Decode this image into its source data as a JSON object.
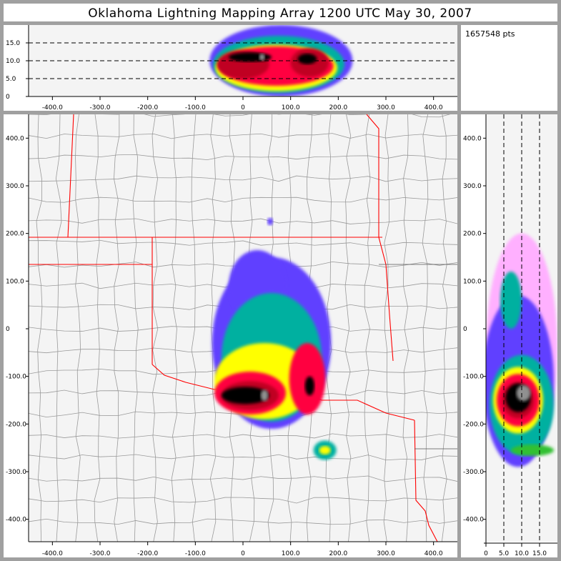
{
  "title": "Oklahoma Lightning Mapping Array   1200 UTC  May 30, 2007",
  "point_count": "1657548 pts",
  "colors": {
    "background": "#a0a0a0",
    "plot_bg": "#f4f4f4",
    "state_border": "#ff0000",
    "county_border": "#9a9a9a",
    "levels": [
      "#ffb0ff",
      "#6040ff",
      "#00b0a0",
      "#30c030",
      "#ffff00",
      "#ffa000",
      "#ff0040",
      "#c00020",
      "#000000",
      "#909090"
    ]
  },
  "chart_data": [
    {
      "name": "plan-view",
      "type": "heatmap",
      "xlim": [
        -450,
        450
      ],
      "ylim": [
        -450,
        450
      ],
      "xticks": [
        -400,
        -300,
        -200,
        -100,
        0,
        100,
        200,
        300,
        400
      ],
      "xtick_labels": [
        "-400.0",
        "-300.0",
        "-200.0",
        "-100.0",
        "0",
        "100.0",
        "200.0",
        "300.0",
        "400.0"
      ],
      "yticks": [
        -400,
        -300,
        -200,
        -100,
        0,
        100,
        200,
        300,
        400
      ],
      "ytick_labels": [
        "-400.0",
        "-300.0",
        "-200.0",
        "-100.0",
        "0",
        "100.0",
        "200.0",
        "300.0",
        "400.0"
      ],
      "density": [
        {
          "x": 60,
          "y": -30,
          "rx": 125,
          "ry": 180,
          "level": 1
        },
        {
          "x": 30,
          "y": 90,
          "rx": 60,
          "ry": 75,
          "level": 1
        },
        {
          "x": 60,
          "y": -60,
          "rx": 105,
          "ry": 135,
          "level": 2
        },
        {
          "x": 45,
          "y": -110,
          "rx": 105,
          "ry": 80,
          "level": 4
        },
        {
          "x": 15,
          "y": -135,
          "rx": 75,
          "ry": 45,
          "level": 6
        },
        {
          "x": 135,
          "y": -105,
          "rx": 38,
          "ry": 75,
          "level": 6
        },
        {
          "x": 15,
          "y": -140,
          "rx": 60,
          "ry": 30,
          "level": 7
        },
        {
          "x": 5,
          "y": -140,
          "rx": 50,
          "ry": 18,
          "level": 8
        },
        {
          "x": 140,
          "y": -120,
          "rx": 10,
          "ry": 20,
          "level": 8
        },
        {
          "x": 45,
          "y": -140,
          "rx": 8,
          "ry": 12,
          "level": 9
        },
        {
          "x": 172,
          "y": -255,
          "rx": 24,
          "ry": 20,
          "level": 2
        },
        {
          "x": 172,
          "y": -255,
          "rx": 12,
          "ry": 9,
          "level": 4
        },
        {
          "x": 57,
          "y": 225,
          "rx": 6,
          "ry": 8,
          "level": 1
        }
      ]
    },
    {
      "name": "east-west-altitude",
      "type": "heatmap",
      "xlim": [
        -450,
        450
      ],
      "ylim": [
        0,
        20
      ],
      "xticks": [
        -400,
        -300,
        -200,
        -100,
        0,
        100,
        200,
        300,
        400
      ],
      "xtick_labels": [
        "-400.0",
        "-300.0",
        "-200.0",
        "-100.0",
        "0",
        "100.0",
        "200.0",
        "300.0",
        "400.0"
      ],
      "yticks": [
        0,
        5,
        10,
        15
      ],
      "ytick_labels": [
        "0",
        "5.0",
        "10.0",
        "15.0"
      ],
      "dashed_lines": [
        5,
        10,
        15
      ],
      "density": [
        {
          "x": 80,
          "y": 10,
          "rx": 150,
          "ry": 10,
          "level": 1
        },
        {
          "x": 75,
          "y": 9,
          "rx": 138,
          "ry": 8,
          "level": 2
        },
        {
          "x": 70,
          "y": 8,
          "rx": 128,
          "ry": 6.5,
          "level": 4
        },
        {
          "x": 70,
          "y": 8.5,
          "rx": 120,
          "ry": 5.5,
          "level": 6
        },
        {
          "x": 0,
          "y": 9,
          "rx": 55,
          "ry": 4,
          "level": 7
        },
        {
          "x": 140,
          "y": 9.5,
          "rx": 40,
          "ry": 4,
          "level": 7
        },
        {
          "x": 15,
          "y": 11,
          "rx": 45,
          "ry": 1.3,
          "level": 8
        },
        {
          "x": 135,
          "y": 10.5,
          "rx": 20,
          "ry": 1.5,
          "level": 8
        },
        {
          "x": 40,
          "y": 11,
          "rx": 6,
          "ry": 1,
          "level": 9
        }
      ]
    },
    {
      "name": "north-south-altitude",
      "type": "heatmap",
      "xlim": [
        0,
        20
      ],
      "ylim": [
        -450,
        450
      ],
      "xticks": [
        0,
        5,
        10,
        15
      ],
      "xtick_labels": [
        "0",
        "5.0",
        "10.0",
        "15.0"
      ],
      "yticks": [
        -400,
        -300,
        -200,
        -100,
        0,
        100,
        200,
        300,
        400
      ],
      "ytick_labels": [
        "-400.0",
        "-300.0",
        "-200.0",
        "-100.0",
        "0",
        "100.0",
        "200.0",
        "300.0",
        "400.0"
      ],
      "dashed_lines": [
        5,
        10,
        15
      ],
      "density": [
        {
          "x": 10,
          "y": -40,
          "rx": 10,
          "ry": 240,
          "level": 0
        },
        {
          "x": 9,
          "y": -110,
          "rx": 10,
          "ry": 180,
          "level": 1
        },
        {
          "x": 7,
          "y": 60,
          "rx": 3,
          "ry": 60,
          "level": 2
        },
        {
          "x": 10,
          "y": -160,
          "rx": 9,
          "ry": 105,
          "level": 2
        },
        {
          "x": 9,
          "y": -150,
          "rx": 7,
          "ry": 70,
          "level": 4
        },
        {
          "x": 9,
          "y": -150,
          "rx": 6,
          "ry": 55,
          "level": 6
        },
        {
          "x": 9,
          "y": -150,
          "rx": 4.5,
          "ry": 38,
          "level": 7
        },
        {
          "x": 9,
          "y": -145,
          "rx": 3.5,
          "ry": 30,
          "level": 8
        },
        {
          "x": 10.5,
          "y": -135,
          "rx": 2,
          "ry": 17,
          "level": 9
        },
        {
          "x": 13,
          "y": -255,
          "rx": 6,
          "ry": 12,
          "level": 3
        }
      ]
    }
  ]
}
